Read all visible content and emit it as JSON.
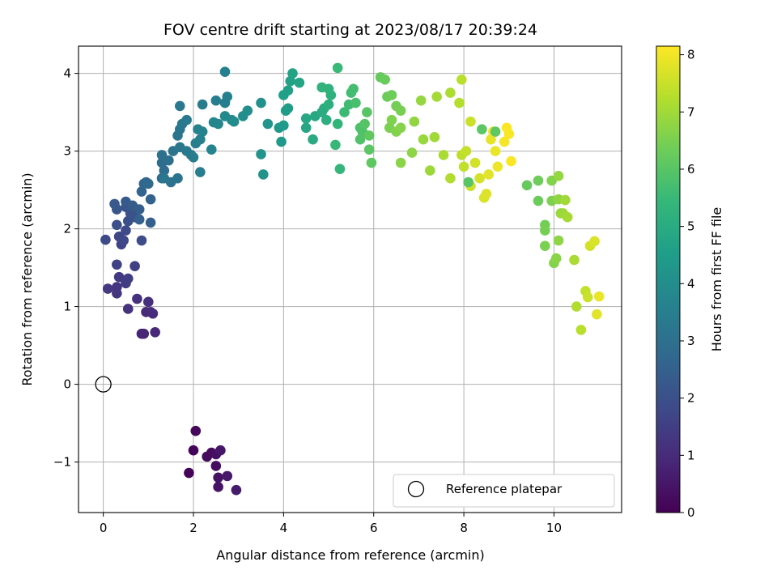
{
  "chart_data": {
    "type": "scatter",
    "title": "FOV centre drift starting at 2023/08/17 20:39:24",
    "xlabel": "Angular distance from reference (arcmin)",
    "ylabel": "Rotation from reference (arcmin)",
    "xlim": [
      -0.55,
      11.5
    ],
    "ylim": [
      -1.65,
      4.35
    ],
    "xticks": [
      0,
      2,
      4,
      6,
      8,
      10
    ],
    "yticks": [
      -1,
      0,
      1,
      2,
      3,
      4
    ],
    "grid": true,
    "colormap": "viridis",
    "colorbar": {
      "label": "Hours from first FF file",
      "range": [
        0,
        8.15
      ],
      "ticks": [
        0,
        1,
        2,
        3,
        4,
        5,
        6,
        7,
        8
      ]
    },
    "reference": {
      "label": "Reference platepar",
      "x": 0,
      "y": 0,
      "legend_position": "lower-right"
    },
    "points": [
      [
        1.9,
        -1.14,
        0.05
      ],
      [
        2.0,
        -0.85,
        0.1
      ],
      [
        2.05,
        -0.6,
        0.15
      ],
      [
        2.3,
        -0.93,
        0.2
      ],
      [
        2.4,
        -0.88,
        0.25
      ],
      [
        2.5,
        -1.05,
        0.3
      ],
      [
        2.5,
        -0.9,
        0.35
      ],
      [
        2.55,
        -1.2,
        0.4
      ],
      [
        2.55,
        -1.32,
        0.45
      ],
      [
        2.6,
        -0.85,
        0.5
      ],
      [
        2.75,
        -1.18,
        0.55
      ],
      [
        2.95,
        -1.36,
        0.6
      ],
      [
        0.85,
        0.65,
        0.8
      ],
      [
        0.9,
        0.65,
        0.85
      ],
      [
        1.15,
        0.67,
        0.9
      ],
      [
        0.95,
        0.93,
        0.95
      ],
      [
        1.05,
        0.93,
        1.0
      ],
      [
        1.1,
        0.91,
        1.05
      ],
      [
        1.0,
        1.06,
        1.1
      ],
      [
        0.75,
        1.1,
        1.15
      ],
      [
        0.55,
        0.97,
        1.2
      ],
      [
        0.3,
        1.17,
        1.25
      ],
      [
        0.3,
        1.25,
        1.3
      ],
      [
        0.1,
        1.23,
        1.35
      ],
      [
        0.35,
        1.38,
        1.4
      ],
      [
        0.5,
        1.3,
        1.45
      ],
      [
        0.55,
        1.36,
        1.5
      ],
      [
        0.7,
        1.52,
        1.55
      ],
      [
        0.3,
        1.54,
        1.6
      ],
      [
        0.4,
        1.8,
        1.65
      ],
      [
        0.35,
        1.9,
        1.7
      ],
      [
        0.45,
        1.85,
        1.75
      ],
      [
        0.5,
        1.98,
        1.8
      ],
      [
        0.05,
        1.86,
        1.85
      ],
      [
        0.85,
        1.85,
        1.9
      ],
      [
        0.3,
        2.05,
        1.95
      ],
      [
        0.55,
        2.1,
        2.0
      ],
      [
        0.6,
        2.2,
        2.05
      ],
      [
        0.7,
        2.15,
        2.1
      ],
      [
        0.5,
        2.28,
        2.15
      ],
      [
        0.3,
        2.25,
        2.2
      ],
      [
        0.25,
        2.32,
        2.25
      ],
      [
        0.5,
        2.35,
        2.3
      ],
      [
        0.65,
        2.3,
        2.35
      ],
      [
        0.8,
        2.25,
        2.4
      ],
      [
        1.05,
        2.08,
        2.45
      ],
      [
        0.8,
        2.12,
        2.5
      ],
      [
        1.05,
        2.38,
        2.55
      ],
      [
        0.85,
        2.48,
        2.6
      ],
      [
        0.9,
        2.58,
        2.65
      ],
      [
        0.95,
        2.6,
        2.7
      ],
      [
        1.0,
        2.58,
        2.75
      ],
      [
        1.3,
        2.65,
        2.8
      ],
      [
        1.35,
        2.75,
        2.85
      ],
      [
        1.3,
        2.85,
        2.9
      ],
      [
        1.45,
        2.88,
        2.95
      ],
      [
        1.3,
        2.95,
        3.0
      ],
      [
        1.5,
        2.6,
        3.05
      ],
      [
        1.65,
        2.65,
        3.1
      ],
      [
        1.55,
        3.0,
        3.15
      ],
      [
        1.35,
        2.65,
        3.2
      ],
      [
        1.7,
        3.05,
        3.25
      ],
      [
        1.85,
        3.0,
        3.3
      ],
      [
        1.95,
        2.95,
        3.35
      ],
      [
        2.0,
        2.92,
        3.4
      ],
      [
        2.15,
        2.73,
        3.45
      ],
      [
        2.05,
        3.1,
        3.5
      ],
      [
        2.15,
        3.15,
        3.55
      ],
      [
        2.1,
        3.28,
        3.6
      ],
      [
        2.2,
        3.25,
        3.65
      ],
      [
        2.4,
        3.02,
        3.7
      ],
      [
        2.45,
        3.37,
        3.75
      ],
      [
        2.55,
        3.35,
        3.8
      ],
      [
        2.7,
        3.45,
        3.85
      ],
      [
        2.85,
        3.4,
        3.9
      ],
      [
        2.9,
        3.38,
        3.95
      ],
      [
        3.1,
        3.45,
        4.0
      ],
      [
        3.2,
        3.52,
        4.05
      ],
      [
        3.5,
        3.62,
        4.1
      ],
      [
        3.55,
        2.7,
        4.15
      ],
      [
        3.5,
        2.96,
        4.2
      ],
      [
        3.65,
        3.35,
        4.25
      ],
      [
        3.9,
        3.3,
        4.3
      ],
      [
        3.95,
        3.12,
        4.35
      ],
      [
        4.0,
        3.33,
        4.4
      ],
      [
        4.05,
        3.52,
        4.45
      ],
      [
        4.1,
        3.55,
        4.5
      ],
      [
        1.7,
        3.28,
        3.2
      ],
      [
        1.75,
        3.35,
        3.25
      ],
      [
        1.7,
        3.58,
        3.3
      ],
      [
        1.85,
        3.4,
        3.35
      ],
      [
        2.2,
        3.6,
        3.4
      ],
      [
        2.5,
        3.65,
        3.45
      ],
      [
        2.7,
        3.62,
        3.5
      ],
      [
        2.75,
        3.7,
        3.55
      ],
      [
        2.7,
        4.02,
        3.6
      ],
      [
        1.65,
        3.2,
        3.15
      ],
      [
        4.0,
        3.72,
        4.55
      ],
      [
        4.1,
        3.78,
        4.6
      ],
      [
        4.15,
        3.9,
        4.65
      ],
      [
        4.2,
        4.0,
        4.7
      ],
      [
        4.35,
        3.88,
        4.75
      ],
      [
        4.5,
        3.3,
        4.8
      ],
      [
        4.5,
        3.42,
        4.85
      ],
      [
        4.7,
        3.45,
        4.9
      ],
      [
        4.65,
        3.15,
        4.95
      ],
      [
        4.85,
        3.5,
        5.0
      ],
      [
        4.9,
        3.55,
        5.05
      ],
      [
        4.95,
        3.4,
        5.1
      ],
      [
        5.0,
        3.6,
        5.15
      ],
      [
        5.05,
        3.72,
        5.2
      ],
      [
        5.0,
        3.8,
        5.25
      ],
      [
        4.85,
        3.82,
        5.3
      ],
      [
        5.2,
        3.35,
        5.35
      ],
      [
        5.25,
        2.77,
        5.4
      ],
      [
        5.15,
        3.08,
        5.45
      ],
      [
        5.2,
        4.07,
        5.5
      ],
      [
        5.35,
        3.5,
        5.55
      ],
      [
        5.45,
        3.6,
        5.6
      ],
      [
        5.5,
        3.75,
        5.65
      ],
      [
        5.55,
        3.8,
        5.7
      ],
      [
        5.6,
        3.62,
        5.75
      ],
      [
        5.7,
        3.3,
        5.8
      ],
      [
        5.75,
        3.25,
        5.85
      ],
      [
        5.7,
        3.15,
        5.9
      ],
      [
        5.8,
        3.35,
        5.95
      ],
      [
        5.85,
        3.5,
        6.0
      ],
      [
        5.9,
        3.02,
        6.05
      ],
      [
        5.95,
        2.85,
        6.1
      ],
      [
        5.9,
        3.2,
        6.15
      ],
      [
        6.15,
        3.95,
        6.2
      ],
      [
        6.25,
        3.92,
        6.25
      ],
      [
        6.3,
        3.7,
        6.3
      ],
      [
        6.4,
        3.72,
        6.35
      ],
      [
        6.5,
        3.58,
        6.4
      ],
      [
        6.6,
        3.52,
        6.45
      ],
      [
        6.35,
        3.3,
        6.5
      ],
      [
        6.4,
        3.4,
        6.55
      ],
      [
        6.5,
        3.25,
        6.6
      ],
      [
        6.6,
        3.3,
        6.65
      ],
      [
        6.6,
        2.85,
        6.7
      ],
      [
        6.85,
        2.98,
        6.75
      ],
      [
        6.9,
        3.38,
        6.8
      ],
      [
        7.05,
        3.65,
        6.85
      ],
      [
        7.1,
        3.15,
        6.9
      ],
      [
        7.25,
        2.75,
        6.95
      ],
      [
        7.35,
        3.18,
        7.0
      ],
      [
        7.4,
        3.7,
        7.05
      ],
      [
        7.55,
        2.95,
        7.1
      ],
      [
        7.7,
        3.75,
        7.15
      ],
      [
        7.7,
        2.65,
        7.2
      ],
      [
        7.9,
        3.62,
        7.25
      ],
      [
        7.95,
        3.92,
        7.3
      ],
      [
        7.95,
        2.95,
        7.35
      ],
      [
        8.0,
        2.8,
        7.4
      ],
      [
        8.05,
        3.0,
        7.45
      ],
      [
        8.15,
        3.38,
        7.5
      ],
      [
        8.15,
        2.55,
        7.55
      ],
      [
        8.25,
        2.85,
        7.6
      ],
      [
        8.35,
        2.65,
        7.65
      ],
      [
        8.45,
        2.4,
        7.7
      ],
      [
        8.5,
        2.45,
        7.75
      ],
      [
        8.55,
        2.7,
        7.8
      ],
      [
        8.6,
        3.15,
        7.85
      ],
      [
        8.7,
        3.0,
        7.9
      ],
      [
        8.75,
        2.8,
        7.95
      ],
      [
        8.65,
        3.25,
        8.0
      ],
      [
        8.9,
        3.12,
        8.05
      ],
      [
        8.95,
        3.3,
        8.1
      ],
      [
        9.0,
        3.22,
        8.1
      ],
      [
        9.05,
        2.87,
        8.1
      ],
      [
        8.1,
        2.6,
        6.0
      ],
      [
        8.4,
        3.28,
        6.05
      ],
      [
        8.7,
        3.25,
        6.1
      ],
      [
        9.4,
        2.56,
        6.2
      ],
      [
        9.65,
        2.36,
        6.3
      ],
      [
        9.65,
        2.62,
        6.35
      ],
      [
        9.8,
        2.05,
        6.4
      ],
      [
        9.8,
        1.98,
        6.45
      ],
      [
        9.8,
        1.78,
        6.5
      ],
      [
        9.95,
        2.36,
        6.55
      ],
      [
        9.95,
        2.62,
        6.6
      ],
      [
        10.0,
        1.56,
        6.65
      ],
      [
        10.05,
        1.62,
        6.7
      ],
      [
        10.1,
        1.85,
        6.75
      ],
      [
        10.1,
        2.38,
        6.8
      ],
      [
        10.1,
        2.68,
        6.85
      ],
      [
        10.15,
        2.2,
        6.9
      ],
      [
        10.2,
        2.2,
        6.95
      ],
      [
        10.25,
        2.37,
        7.0
      ],
      [
        10.3,
        2.15,
        7.05
      ],
      [
        10.45,
        1.6,
        7.1
      ],
      [
        10.5,
        1.0,
        7.2
      ],
      [
        10.6,
        0.7,
        7.3
      ],
      [
        10.7,
        1.2,
        7.4
      ],
      [
        10.75,
        1.12,
        7.5
      ],
      [
        10.8,
        1.78,
        7.6
      ],
      [
        10.9,
        1.84,
        7.7
      ],
      [
        10.95,
        0.9,
        7.8
      ],
      [
        11.0,
        1.13,
        7.9
      ]
    ]
  }
}
